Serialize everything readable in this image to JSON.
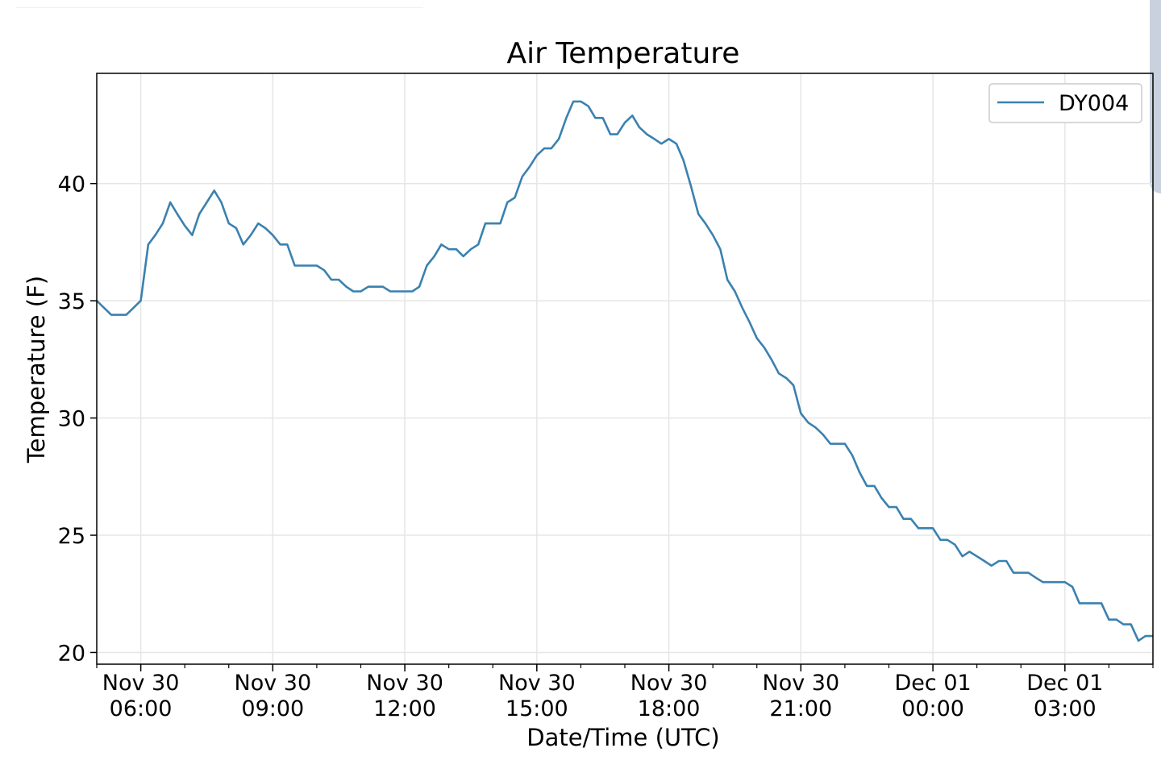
{
  "chart_data": {
    "type": "line",
    "title": "Air Temperature",
    "xlabel": "Date/Time (UTC)",
    "ylabel": "Temperature (F)",
    "x_unit": "hours UTC from Nov 30 00:00",
    "xlim": [
      5.0,
      29.0
    ],
    "ylim": [
      19.5,
      44.7
    ],
    "y_ticks": [
      20,
      25,
      30,
      35,
      40
    ],
    "x_ticks": [
      {
        "x": 6,
        "line1": "Nov 30",
        "line2": "06:00"
      },
      {
        "x": 9,
        "line1": "Nov 30",
        "line2": "09:00"
      },
      {
        "x": 12,
        "line1": "Nov 30",
        "line2": "12:00"
      },
      {
        "x": 15,
        "line1": "Nov 30",
        "line2": "15:00"
      },
      {
        "x": 18,
        "line1": "Nov 30",
        "line2": "18:00"
      },
      {
        "x": 21,
        "line1": "Nov 30",
        "line2": "21:00"
      },
      {
        "x": 24,
        "line1": "Dec 01",
        "line2": "00:00"
      },
      {
        "x": 27,
        "line1": "Dec 01",
        "line2": "03:00"
      }
    ],
    "grid": true,
    "legend_position": "top-right",
    "series": [
      {
        "name": "DY004",
        "color": "#3a81b0",
        "points": [
          [
            5.0,
            35.0
          ],
          [
            5.33,
            34.4
          ],
          [
            5.67,
            34.4
          ],
          [
            6.0,
            35.0
          ],
          [
            6.17,
            37.4
          ],
          [
            6.33,
            37.8
          ],
          [
            6.5,
            38.3
          ],
          [
            6.67,
            39.2
          ],
          [
            6.83,
            38.7
          ],
          [
            7.0,
            38.2
          ],
          [
            7.17,
            37.8
          ],
          [
            7.33,
            38.7
          ],
          [
            7.5,
            39.2
          ],
          [
            7.67,
            39.7
          ],
          [
            7.83,
            39.2
          ],
          [
            8.0,
            38.3
          ],
          [
            8.17,
            38.1
          ],
          [
            8.33,
            37.4
          ],
          [
            8.5,
            37.8
          ],
          [
            8.67,
            38.3
          ],
          [
            8.83,
            38.1
          ],
          [
            9.0,
            37.8
          ],
          [
            9.17,
            37.4
          ],
          [
            9.33,
            37.4
          ],
          [
            9.5,
            36.5
          ],
          [
            10.0,
            36.5
          ],
          [
            10.17,
            36.3
          ],
          [
            10.33,
            35.9
          ],
          [
            10.5,
            35.9
          ],
          [
            10.67,
            35.6
          ],
          [
            10.83,
            35.4
          ],
          [
            11.0,
            35.4
          ],
          [
            11.17,
            35.6
          ],
          [
            11.5,
            35.6
          ],
          [
            11.67,
            35.4
          ],
          [
            12.17,
            35.4
          ],
          [
            12.33,
            35.6
          ],
          [
            12.5,
            36.5
          ],
          [
            12.67,
            36.9
          ],
          [
            12.83,
            37.4
          ],
          [
            13.0,
            37.2
          ],
          [
            13.17,
            37.2
          ],
          [
            13.33,
            36.9
          ],
          [
            13.5,
            37.2
          ],
          [
            13.67,
            37.4
          ],
          [
            13.83,
            38.3
          ],
          [
            14.17,
            38.3
          ],
          [
            14.33,
            39.2
          ],
          [
            14.5,
            39.4
          ],
          [
            14.67,
            40.3
          ],
          [
            14.83,
            40.7
          ],
          [
            15.0,
            41.2
          ],
          [
            15.17,
            41.5
          ],
          [
            15.33,
            41.5
          ],
          [
            15.5,
            41.9
          ],
          [
            15.67,
            42.8
          ],
          [
            15.83,
            43.5
          ],
          [
            16.0,
            43.5
          ],
          [
            16.17,
            43.3
          ],
          [
            16.33,
            42.8
          ],
          [
            16.5,
            42.8
          ],
          [
            16.67,
            42.1
          ],
          [
            16.83,
            42.1
          ],
          [
            17.0,
            42.6
          ],
          [
            17.17,
            42.9
          ],
          [
            17.33,
            42.4
          ],
          [
            17.5,
            42.1
          ],
          [
            17.67,
            41.9
          ],
          [
            17.83,
            41.7
          ],
          [
            18.0,
            41.9
          ],
          [
            18.17,
            41.7
          ],
          [
            18.33,
            41.0
          ],
          [
            18.5,
            39.9
          ],
          [
            18.67,
            38.7
          ],
          [
            18.83,
            38.3
          ],
          [
            19.0,
            37.8
          ],
          [
            19.17,
            37.2
          ],
          [
            19.33,
            35.9
          ],
          [
            19.5,
            35.4
          ],
          [
            19.67,
            34.7
          ],
          [
            19.83,
            34.1
          ],
          [
            20.0,
            33.4
          ],
          [
            20.17,
            33.0
          ],
          [
            20.33,
            32.5
          ],
          [
            20.5,
            31.9
          ],
          [
            20.67,
            31.7
          ],
          [
            20.83,
            31.4
          ],
          [
            21.0,
            30.2
          ],
          [
            21.17,
            29.8
          ],
          [
            21.33,
            29.6
          ],
          [
            21.5,
            29.3
          ],
          [
            21.67,
            28.9
          ],
          [
            22.0,
            28.9
          ],
          [
            22.17,
            28.4
          ],
          [
            22.33,
            27.7
          ],
          [
            22.5,
            27.1
          ],
          [
            22.67,
            27.1
          ],
          [
            22.83,
            26.6
          ],
          [
            23.0,
            26.2
          ],
          [
            23.17,
            26.2
          ],
          [
            23.33,
            25.7
          ],
          [
            23.5,
            25.7
          ],
          [
            23.67,
            25.3
          ],
          [
            24.0,
            25.3
          ],
          [
            24.17,
            24.8
          ],
          [
            24.33,
            24.8
          ],
          [
            24.5,
            24.6
          ],
          [
            24.67,
            24.1
          ],
          [
            24.83,
            24.3
          ],
          [
            25.0,
            24.1
          ],
          [
            25.17,
            23.9
          ],
          [
            25.33,
            23.7
          ],
          [
            25.5,
            23.9
          ],
          [
            25.67,
            23.9
          ],
          [
            25.83,
            23.4
          ],
          [
            26.17,
            23.4
          ],
          [
            26.33,
            23.2
          ],
          [
            26.5,
            23.0
          ],
          [
            27.0,
            23.0
          ],
          [
            27.17,
            22.8
          ],
          [
            27.33,
            22.1
          ],
          [
            27.83,
            22.1
          ],
          [
            28.0,
            21.4
          ],
          [
            28.17,
            21.4
          ],
          [
            28.33,
            21.2
          ],
          [
            28.5,
            21.2
          ],
          [
            28.67,
            20.5
          ],
          [
            28.83,
            20.7
          ],
          [
            29.0,
            20.7
          ]
        ]
      }
    ]
  }
}
